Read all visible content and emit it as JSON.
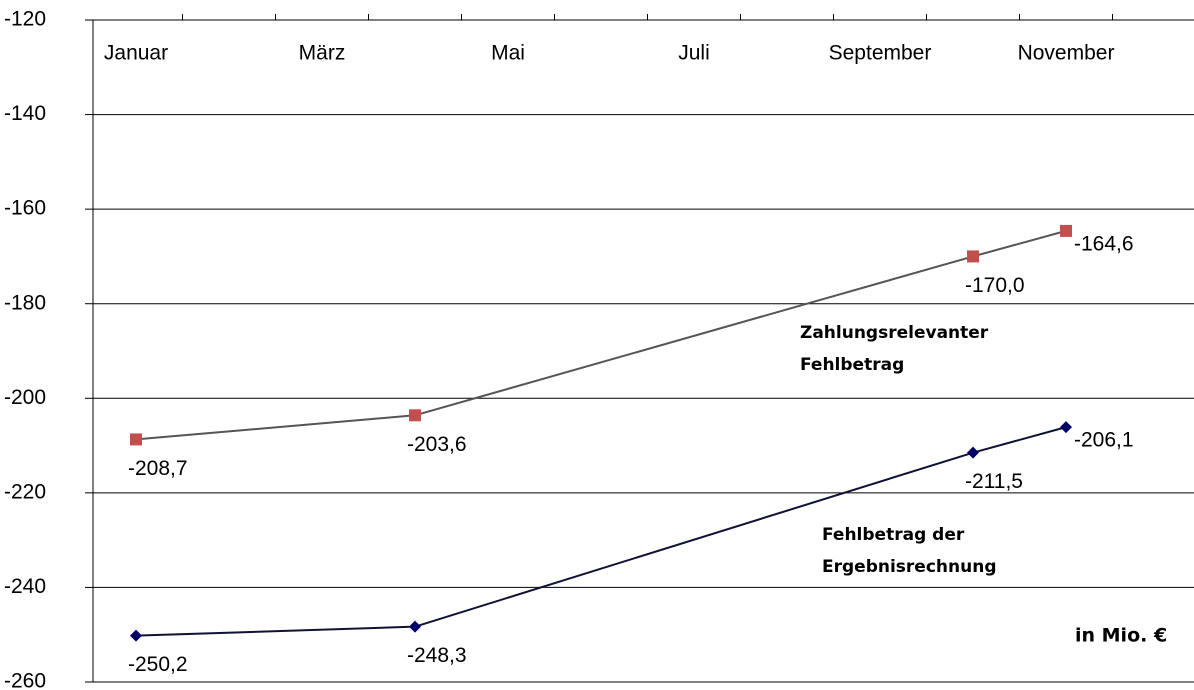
{
  "chart_data": {
    "type": "line",
    "categories": [
      "Januar",
      null,
      "März",
      null,
      "Mai",
      null,
      "Juli",
      null,
      "September",
      null,
      "November",
      null
    ],
    "series": [
      {
        "name": "Zahlungsrelevanter Fehlbetrag",
        "color": "#c0504d",
        "line_color": "#555555",
        "marker": "square",
        "values": [
          -208.7,
          null,
          null,
          -203.6,
          null,
          null,
          null,
          null,
          null,
          -170.0,
          -164.6,
          null
        ],
        "value_labels": [
          "-208,7",
          null,
          null,
          "-203,6",
          null,
          null,
          null,
          null,
          null,
          "-170,0",
          "-164,6",
          null
        ]
      },
      {
        "name": "Fehlbetrag der Ergebnisrechnung",
        "color": "#000066",
        "line_color": "#111133",
        "marker": "diamond",
        "values": [
          -250.2,
          null,
          null,
          -248.3,
          null,
          null,
          null,
          null,
          null,
          -211.5,
          -206.1,
          null
        ],
        "value_labels": [
          "-250,2",
          null,
          null,
          "-248,3",
          null,
          null,
          null,
          null,
          null,
          "-211,5",
          "-206,1",
          null
        ]
      }
    ],
    "annotations": [
      {
        "lines": [
          "Zahlungsrelevanter",
          "Fehlbetrag"
        ]
      },
      {
        "lines": [
          "Fehlbetrag der",
          "Ergebnisrechnung"
        ]
      },
      {
        "lines": [
          "in Mio. €"
        ]
      }
    ],
    "ylim": [
      -260,
      -120
    ],
    "yticks": [
      -260,
      -240,
      -220,
      -200,
      -180,
      -160,
      -140,
      -120
    ],
    "grid": true
  }
}
